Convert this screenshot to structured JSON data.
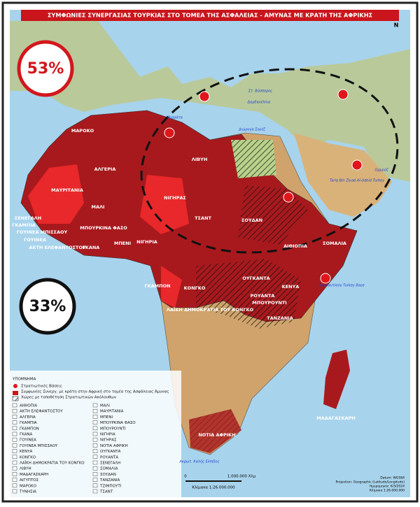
{
  "header": {
    "title": "ΣΥΜΦΩΝΙΕΣ ΣΥΝΕΡΓΑΣΙΑΣ ΤΟΥΡΚΙΑΣ ΣΤΟ ΤΟΜΕΑ ΤΗΣ ΑΣΦΑΛΕΙΑΣ - ΑΜΥΝΑΣ ΜΕ ΚΡΑΤΗ ΤΗΣ ΑΦΡΙΚΗΣ",
    "north": "N"
  },
  "badges": [
    "53%",
    "33%"
  ],
  "map_labels": [
    "ΜΑΡΟΚΟ",
    "ΑΛΓΕΡΙΑ",
    "ΛΙΒΥΗ",
    "ΜΑΥΡΙΤΑΝΙΑ",
    "ΜΑΛΙ",
    "ΝΙΓΗΡΑΣ",
    "ΤΣΑΝΤ",
    "ΣΟΥΔΑΝ",
    "ΣΕΝΕΓΑΛΗ",
    "ΓΚΑΜΠΙΑ",
    "ΓΟΥΙΝΕΑ ΜΠΙΣΣΑΟΥ",
    "ΓΟΥΙΝΕΑ",
    "ΜΠΟΥΡΚΙΝΑ ΦΑΣΟ",
    "ΑΚΤΗ ΕΛΕΦΑΝΤΟΣΤΟΥ",
    "ΓΚΑΝΑ",
    "ΜΠΕΝΙ",
    "ΝΙΓΗΡΙΑ",
    "ΑΙΘΙΟΠΙΑ",
    "ΣΟΜΑΛΙΑ",
    "ΟΥΓΚΑΝΤΑ",
    "ΚΕΝΥΑ",
    "ΡΟΥΑΝΤΑ",
    "ΜΠΟΥΡΟΥΝΤΙ",
    "ΤΑΝΖΑΝΙΑ",
    "ΓΚΑΜΠΟΝ",
    "ΚΟΝΓΚΟ",
    "ΛΑΪΚΗ ΔΗΜΟΚΡΑΤΙΑ ΤΟΥ ΚΟΝΓΚΟ",
    "ΝΟΤΙΑ ΑΦΡΙΚΗ",
    "ΜΑΔΑΓΑΣΚΑΡΗ"
  ],
  "place_labels": [
    "Στ. Βόσπορος",
    "Δαρδανέλλια",
    "Μισράτα",
    "Διώρυγα Σουέζ",
    "Ορμούζ",
    "Tariq Bin Ziyad Al-Udeid Turkey",
    "Μογκαντίσου Turkey Base",
    "Ακρωτ. Καλής Ελπίδος"
  ],
  "legend": {
    "title": "ΥΠΟΜΝΗΜΑ",
    "items": [
      "Στρατιωτικές Βάσεις",
      "Συμφωνίες Συνεργ. με κράτη στην Αφρική στο τομέα της Ασφάλειας Άμυνας",
      "Χώρες με τοποθέτηση Στρατιωτικών Ακόλουθων"
    ],
    "countries": [
      "ΑΙΘΙΟΠΙΑ",
      "ΑΚΤΗ ΕΛΕΦΑΝΤΟΣΤΟΥ",
      "ΑΛΓΕΡΙΑ",
      "ΓΚΑΜΠΙΑ",
      "ΓΚΑΜΠΟΝ",
      "ΓΚΑΝΑ",
      "ΓΟΥΙΝΕΑ",
      "ΓΟΥΙΝΕΑ ΜΠΙΣΣΑΟΥ",
      "ΚΕΝΥΑ",
      "ΚΟΝΓΚΟ",
      "ΛΑΪΚΗ ΔΗΜΟΚΡΑΤΙΑ ΤΟΥ ΚΟΝΓΚΟ",
      "ΛΙΒΥΗ",
      "ΜΑΔΑΓΑΣΚΑΡΗ",
      "ΑΙΓΥΠΤΟΣ",
      "ΜΑΡΟΚΟ",
      "ΤΥΝΗΣΙΑ",
      "ΜΑΛΙ",
      "ΜΑΥΡΙΤΑΝΙΑ",
      "ΜΠΕΝΙ",
      "ΜΠΟΥΡΚΙΝΑ ΦΑΣΟ",
      "ΜΠΟΥΡΟΥΝΤΙ",
      "ΝΙΓΗΡΙΑ",
      "ΝΙΓΗΡΑΣ",
      "ΝΟΤΙΑ ΑΦΡΙΚΗ",
      "ΟΥΓΚΑΝΤΑ",
      "ΡΟΥΑΝΤΑ",
      "ΣΕΝΕΓΑΛΗ",
      "ΣΟΜΑΛΙΑ",
      "ΣΟΥΔΑΝ",
      "ΤΑΝΖΑΝΙΑ",
      "ΤΖΙΜΠΟΥΤΙ",
      "ΤΣΑΝΤ"
    ]
  },
  "scale": {
    "zero": "0",
    "end": "1.000.000 Χλμ",
    "caption": "Κλίμακα 1:26.000.000"
  },
  "info": [
    "Datum: WGS84",
    "Projection: Geographic (Latitude/Longitude)",
    "Ημερομηνία: 6/3/2024",
    "Κλίμακα 1:26.000.000"
  ]
}
